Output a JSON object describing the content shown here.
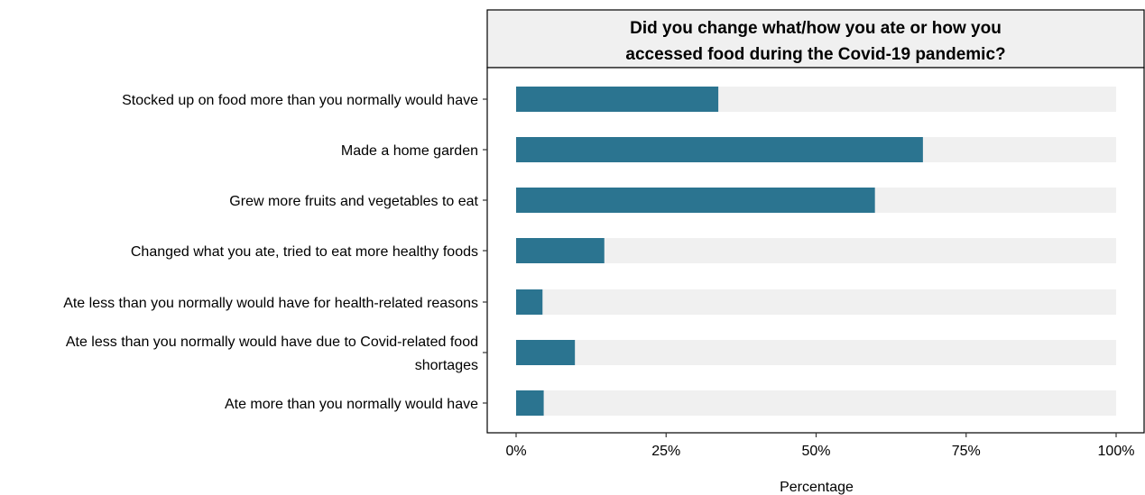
{
  "chart_data": {
    "type": "bar",
    "orientation": "horizontal",
    "title": [
      "Did you change what/how you ate or how you",
      "accessed food during the Covid-19 pandemic?"
    ],
    "xlabel": "Percentage",
    "ylabel": "",
    "xlim": [
      0,
      100
    ],
    "xticks": [
      0,
      25,
      50,
      75,
      100
    ],
    "xtick_labels": [
      "0%",
      "25%",
      "50%",
      "75%",
      "100%"
    ],
    "grid": false,
    "legend": "none",
    "categories": [
      [
        "Stocked up on food more than you normally would have"
      ],
      [
        "Made a home garden"
      ],
      [
        "Grew more fruits and vegetables to eat"
      ],
      [
        "Changed what you ate, tried to eat more healthy foods"
      ],
      [
        "Ate less than you normally would have for health-related reasons"
      ],
      [
        "Ate less than you normally would have due to Covid-related food",
        "shortages"
      ],
      [
        "Ate more than you normally would have"
      ]
    ],
    "values": [
      33.7,
      67.8,
      59.8,
      14.7,
      4.4,
      9.8,
      4.6
    ],
    "colors": {
      "bar": "#2b7490",
      "track": "#f0f0f0",
      "strip": "#f0f0f0"
    }
  }
}
